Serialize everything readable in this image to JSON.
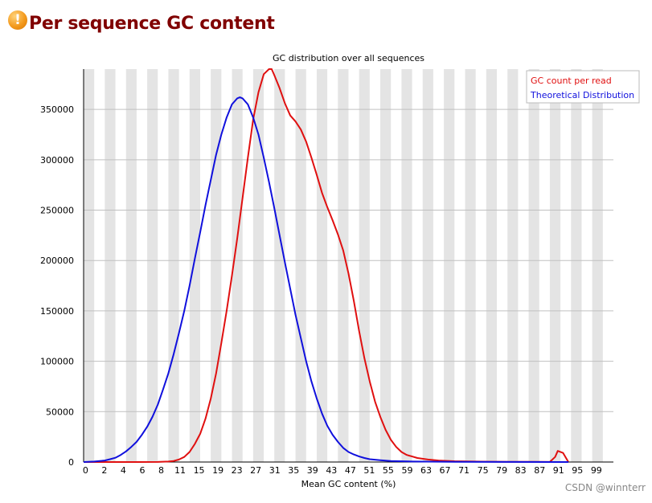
{
  "page": {
    "title": "Per sequence GC content",
    "icon": "warning-icon",
    "watermark": "CSDN @winnterr"
  },
  "colors": {
    "title": "#800000",
    "icon": "#f39a1d",
    "gc_count": "#e01010",
    "theoretical": "#1010dd",
    "stripe": "#e4e4e4",
    "gridline": "#c0c0c0"
  },
  "chart_data": {
    "type": "line",
    "title": "GC distribution over all sequences",
    "xlabel": "Mean GC content (%)",
    "ylabel": "",
    "xlim": [
      0,
      100
    ],
    "ylim": [
      0,
      390000
    ],
    "grid": true,
    "legend_position": "top-right",
    "x_tick_labels": [
      "0",
      "2",
      "4",
      "6",
      "8",
      "11",
      "15",
      "19",
      "23",
      "27",
      "31",
      "35",
      "39",
      "43",
      "47",
      "51",
      "55",
      "59",
      "63",
      "67",
      "71",
      "75",
      "79",
      "83",
      "87",
      "91",
      "95",
      "99"
    ],
    "y_ticks": [
      0,
      50000,
      100000,
      150000,
      200000,
      250000,
      300000,
      350000
    ],
    "series": [
      {
        "name": "GC count per read",
        "color": "#e01010",
        "points": [
          [
            0,
            0
          ],
          [
            10,
            0
          ],
          [
            14,
            100
          ],
          [
            16,
            500
          ],
          [
            17,
            1000
          ],
          [
            18,
            2500
          ],
          [
            19,
            5000
          ],
          [
            20,
            10000
          ],
          [
            21,
            18000
          ],
          [
            22,
            28000
          ],
          [
            23,
            43000
          ],
          [
            24,
            63000
          ],
          [
            25,
            88000
          ],
          [
            26,
            118000
          ],
          [
            27,
            150000
          ],
          [
            28,
            185000
          ],
          [
            29,
            222000
          ],
          [
            30,
            262000
          ],
          [
            31,
            302000
          ],
          [
            32,
            340000
          ],
          [
            33,
            367000
          ],
          [
            34,
            385000
          ],
          [
            35,
            390000
          ],
          [
            35.5,
            390000
          ],
          [
            36,
            384000
          ],
          [
            37,
            371000
          ],
          [
            38,
            356000
          ],
          [
            39,
            344000
          ],
          [
            40,
            338000
          ],
          [
            41,
            330000
          ],
          [
            42,
            318000
          ],
          [
            43,
            302000
          ],
          [
            44,
            285000
          ],
          [
            45,
            267000
          ],
          [
            46,
            253000
          ],
          [
            47,
            240000
          ],
          [
            48,
            226000
          ],
          [
            49,
            210000
          ],
          [
            50,
            187000
          ],
          [
            51,
            160000
          ],
          [
            52,
            130000
          ],
          [
            53,
            103000
          ],
          [
            54,
            80000
          ],
          [
            55,
            60000
          ],
          [
            56,
            45000
          ],
          [
            57,
            32000
          ],
          [
            58,
            22000
          ],
          [
            59,
            15000
          ],
          [
            60,
            10000
          ],
          [
            61,
            7000
          ],
          [
            62,
            5500
          ],
          [
            63,
            4000
          ],
          [
            65,
            2500
          ],
          [
            67,
            1500
          ],
          [
            70,
            800
          ],
          [
            75,
            400
          ],
          [
            80,
            200
          ],
          [
            85,
            150
          ],
          [
            88,
            100
          ],
          [
            89,
            5000
          ],
          [
            89.5,
            11000
          ],
          [
            90.5,
            9000
          ],
          [
            91.5,
            0
          ]
        ]
      },
      {
        "name": "Theoretical Distribution",
        "color": "#1010dd",
        "points": [
          [
            0,
            0
          ],
          [
            2,
            500
          ],
          [
            4,
            1500
          ],
          [
            5,
            2800
          ],
          [
            6,
            4200
          ],
          [
            7,
            7000
          ],
          [
            8,
            10500
          ],
          [
            9,
            15000
          ],
          [
            10,
            20000
          ],
          [
            11,
            27000
          ],
          [
            12,
            35000
          ],
          [
            13,
            45000
          ],
          [
            14,
            57000
          ],
          [
            15,
            72000
          ],
          [
            16,
            88000
          ],
          [
            17,
            107000
          ],
          [
            18,
            128000
          ],
          [
            19,
            150000
          ],
          [
            20,
            175000
          ],
          [
            21,
            202000
          ],
          [
            22,
            228000
          ],
          [
            23,
            255000
          ],
          [
            24,
            280000
          ],
          [
            25,
            305000
          ],
          [
            26,
            325000
          ],
          [
            27,
            342000
          ],
          [
            28,
            355000
          ],
          [
            29,
            361000
          ],
          [
            29.5,
            362000
          ],
          [
            30,
            361000
          ],
          [
            31,
            355000
          ],
          [
            32,
            342000
          ],
          [
            33,
            325000
          ],
          [
            34,
            302000
          ],
          [
            35,
            278000
          ],
          [
            36,
            252000
          ],
          [
            37,
            225000
          ],
          [
            38,
            198000
          ],
          [
            39,
            172000
          ],
          [
            40,
            146000
          ],
          [
            41,
            123000
          ],
          [
            42,
            100000
          ],
          [
            43,
            80000
          ],
          [
            44,
            63000
          ],
          [
            45,
            48000
          ],
          [
            46,
            36000
          ],
          [
            47,
            27000
          ],
          [
            48,
            20000
          ],
          [
            49,
            14000
          ],
          [
            50,
            10000
          ],
          [
            51,
            7500
          ],
          [
            52,
            5500
          ],
          [
            53,
            4000
          ],
          [
            54,
            2800
          ],
          [
            56,
            1800
          ],
          [
            58,
            1000
          ],
          [
            62,
            500
          ],
          [
            70,
            200
          ],
          [
            80,
            50
          ],
          [
            90,
            10
          ],
          [
            91.5,
            0
          ]
        ]
      }
    ]
  }
}
